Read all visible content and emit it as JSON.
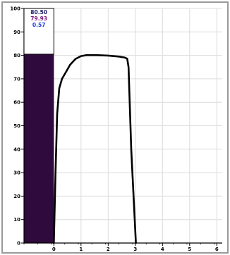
{
  "chart_data": {
    "type": "area",
    "title": "",
    "xlabel": "",
    "ylabel": "",
    "xlim": [
      -1.1,
      6.2
    ],
    "ylim": [
      0,
      100
    ],
    "x_ticks": [
      0,
      1,
      2,
      3,
      4,
      5,
      6
    ],
    "y_ticks": [
      0,
      10,
      20,
      30,
      40,
      50,
      60,
      70,
      80,
      90,
      100
    ],
    "x_tick_labels": [
      "0",
      "1",
      "2",
      "3",
      "4",
      "5",
      "6"
    ],
    "y_tick_labels": [
      "0",
      "10",
      "20",
      "30",
      "40",
      "50",
      "60",
      "70",
      "80",
      "90",
      "100"
    ],
    "grid": true,
    "bar": {
      "x_start": -1.1,
      "x_end": 0,
      "value": 80.5,
      "color": "#2f0a3c"
    },
    "series": [
      {
        "x": [
          0.0,
          0.06,
          0.12,
          0.2,
          0.3,
          0.45,
          0.6,
          0.8,
          1.0,
          1.2,
          1.6,
          2.0,
          2.4,
          2.6,
          2.7,
          2.75,
          2.85,
          3.02
        ],
        "values": [
          0,
          30,
          55,
          66,
          70,
          73,
          76,
          78.5,
          79.7,
          80.1,
          80.1,
          79.9,
          79.5,
          79.1,
          78.6,
          75,
          40,
          0
        ],
        "color": "#000000"
      }
    ],
    "readouts": [
      {
        "text": "80.50",
        "color": "#1a1a66"
      },
      {
        "text": "79.93",
        "color": "#7a1a7a"
      },
      {
        "text": "0.57",
        "color": "#1f3fe0"
      }
    ]
  }
}
